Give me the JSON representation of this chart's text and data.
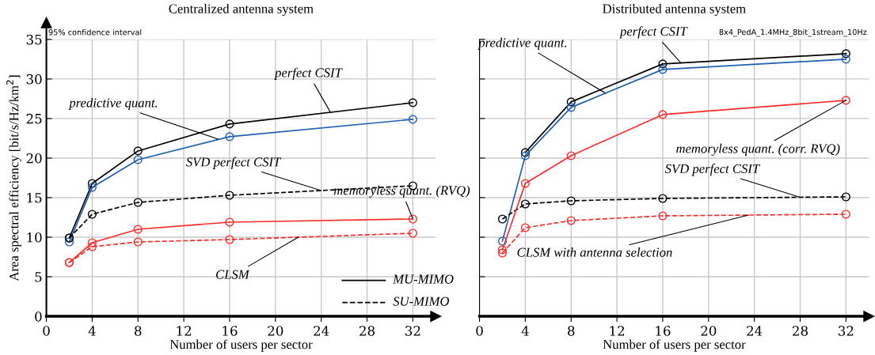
{
  "chart_data": [
    {
      "type": "line",
      "title": "Centralized antenna system",
      "xlabel": "Number of users per sector",
      "ylabel": "Area spectral efficiency [bit/s/Hz/km$^{2}$]",
      "x": [
        2,
        4,
        8,
        16,
        32
      ],
      "xlim": [
        0,
        34
      ],
      "xticks": [
        0,
        4,
        8,
        12,
        16,
        20,
        24,
        28,
        32
      ],
      "ylim": [
        0,
        35
      ],
      "yticks": [
        0,
        5,
        10,
        15,
        20,
        25,
        30,
        35
      ],
      "grid": true,
      "marker": "circle",
      "series": [
        {
          "color": "#000000",
          "line_style": "solid",
          "values": [
            9.9,
            16.8,
            20.9,
            24.3,
            27.0
          ]
        },
        {
          "color": "#1f5fb4",
          "line_style": "solid",
          "values": [
            9.4,
            16.3,
            19.8,
            22.7,
            24.9
          ]
        },
        {
          "color": "#000000",
          "line_style": "dashed",
          "values": [
            9.9,
            12.9,
            14.4,
            15.3,
            16.5
          ]
        },
        {
          "color": "#ff2a2a",
          "line_style": "solid",
          "values": [
            6.8,
            9.3,
            11.0,
            11.9,
            12.3
          ]
        },
        {
          "color": "#ff2a2a",
          "line_style": "dashed",
          "values": [
            6.8,
            8.8,
            9.4,
            9.7,
            10.5
          ]
        }
      ],
      "annotations": [
        {
          "text": "perfect CSIT",
          "x": 24.8,
          "y": 25.8
        },
        {
          "text": "predictive quant.",
          "x": 15,
          "y": 22.4
        },
        {
          "text": "SVD perfect CSIT",
          "x": 24,
          "y": 15.9
        },
        {
          "text": "memoryless quant. (RVQ)",
          "x": 32,
          "y": 12.3
        },
        {
          "text": "CLSM",
          "x": 22,
          "y": 10.0
        },
        "95% confidence interval",
        "MU-MIMO",
        "SU-MIMO"
      ]
    },
    {
      "type": "line",
      "title": "Distributed antenna system",
      "xlabel": "Number of users per sector",
      "x": [
        2,
        4,
        8,
        16,
        32
      ],
      "xlim": [
        0,
        34
      ],
      "xticks": [
        0,
        4,
        8,
        12,
        16,
        20,
        24,
        28,
        32
      ],
      "ylim": [
        0,
        35
      ],
      "yticks": [
        0,
        5,
        10,
        15,
        20,
        25,
        30,
        35
      ],
      "grid": true,
      "marker": "circle",
      "tick_labels": "x",
      "series": [
        {
          "color": "#000000",
          "line_style": "solid",
          "values": [
            null,
            20.7,
            27.1,
            31.9,
            33.2
          ]
        },
        {
          "color": "#1f5fb4",
          "line_style": "solid",
          "values": [
            9.5,
            20.3,
            26.4,
            31.2,
            32.5
          ]
        },
        {
          "color": "#000000",
          "line_style": "dashed",
          "values": [
            12.3,
            14.2,
            14.6,
            14.9,
            15.1
          ]
        },
        {
          "color": "#ff2a2a",
          "line_style": "solid",
          "values": [
            8.4,
            16.8,
            20.3,
            25.5,
            27.3
          ]
        },
        {
          "color": "#ff2a2a",
          "line_style": "dashed",
          "values": [
            8.0,
            11.2,
            12.1,
            12.7,
            12.9
          ]
        }
      ],
      "annotations": [
        {
          "text": "perfect CSIT",
          "x": 17.6,
          "y": 32.0
        },
        {
          "text": "predictive quant.",
          "x": 11,
          "y": 28.2
        },
        {
          "text": "memoryless quant. (corr. RVQ)",
          "x": 32,
          "y": 27.3
        },
        {
          "text": "SVD perfect CSIT",
          "x": 28,
          "y": 15.05
        },
        {
          "text": "CLSM with antenna selection",
          "x": 23.5,
          "y": 12.8
        },
        "8x4_PedA_1.4MHz_8bit_1stream_10Hz"
      ]
    }
  ]
}
